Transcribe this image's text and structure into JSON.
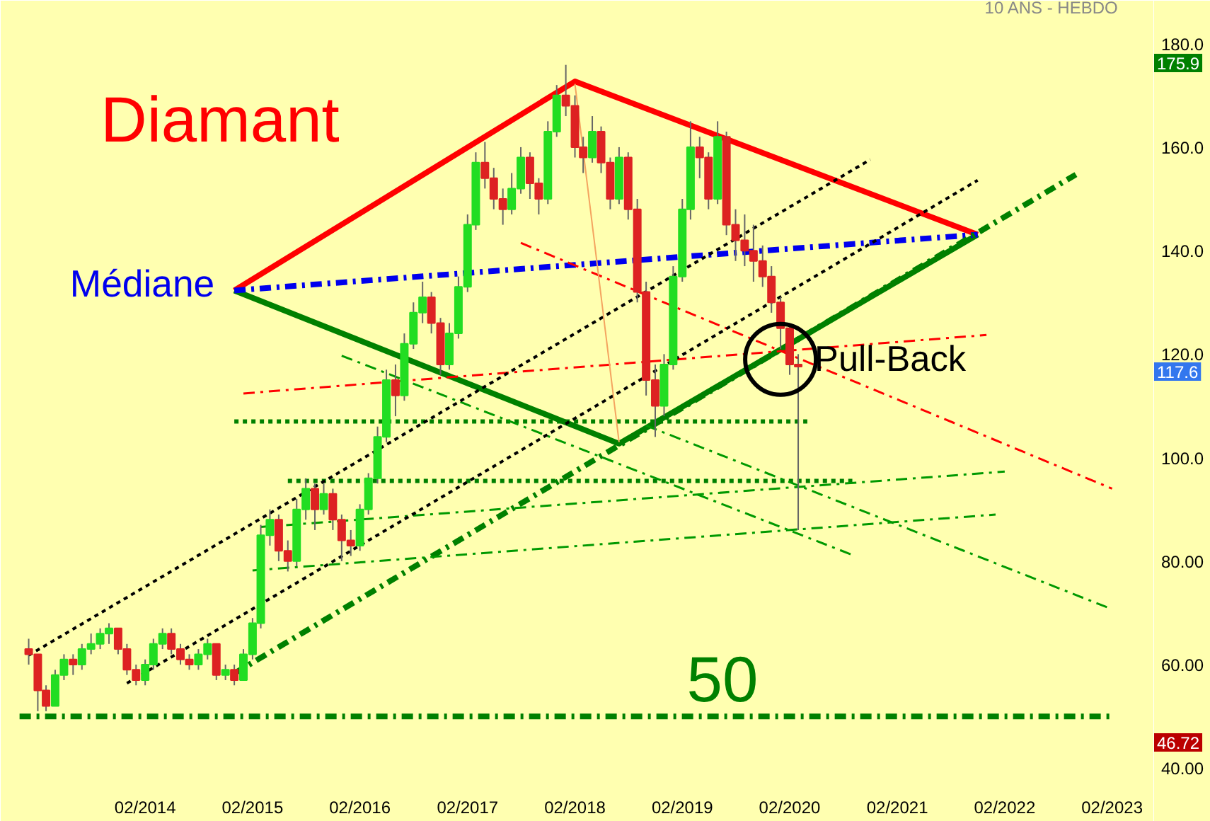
{
  "chart_data": {
    "type": "candlestick",
    "title": "10 ANS - HEBDO",
    "grid": false,
    "x": [
      "2013-01",
      "2013-02",
      "2013-03",
      "2013-04",
      "2013-05",
      "2013-06",
      "2013-07",
      "2013-08",
      "2013-09",
      "2013-10",
      "2013-11",
      "2013-12",
      "2014-01",
      "2014-02",
      "2014-03",
      "2014-04",
      "2014-05",
      "2014-06",
      "2014-07",
      "2014-08",
      "2014-09",
      "2014-10",
      "2014-11",
      "2014-12",
      "2015-01",
      "2015-02",
      "2015-03",
      "2015-04",
      "2015-05",
      "2015-06",
      "2015-07",
      "2015-08",
      "2015-09",
      "2015-10",
      "2015-11",
      "2015-12",
      "2016-01",
      "2016-02",
      "2016-03",
      "2016-04",
      "2016-05",
      "2016-06",
      "2016-07",
      "2016-08",
      "2016-09",
      "2016-10",
      "2016-11",
      "2016-12",
      "2017-01",
      "2017-02",
      "2017-03",
      "2017-04",
      "2017-05",
      "2017-06",
      "2017-07",
      "2017-08",
      "2017-09",
      "2017-10",
      "2017-11",
      "2017-12",
      "2018-01",
      "2018-02",
      "2018-03",
      "2018-04",
      "2018-05",
      "2018-06",
      "2018-07",
      "2018-08",
      "2018-09",
      "2018-10",
      "2018-11",
      "2018-12",
      "2019-01",
      "2019-02",
      "2019-03",
      "2019-04",
      "2019-05",
      "2019-06",
      "2019-07",
      "2019-08",
      "2019-09",
      "2019-10",
      "2019-11",
      "2019-12",
      "2020-01",
      "2020-02",
      "2020-03"
    ],
    "ohlc": [
      [
        63,
        65,
        60,
        62
      ],
      [
        62,
        62,
        51,
        55
      ],
      [
        55,
        56,
        51,
        52
      ],
      [
        52,
        59,
        52,
        58
      ],
      [
        58,
        62,
        57,
        61
      ],
      [
        61,
        62,
        58,
        60
      ],
      [
        60,
        64,
        59,
        63
      ],
      [
        63,
        66,
        62,
        64
      ],
      [
        64,
        67,
        63,
        66
      ],
      [
        66,
        68,
        64,
        67
      ],
      [
        67,
        67,
        62,
        63
      ],
      [
        63,
        64,
        58,
        59
      ],
      [
        59,
        60,
        56,
        57
      ],
      [
        57,
        61,
        56,
        60
      ],
      [
        60,
        65,
        59,
        64
      ],
      [
        64,
        67,
        63,
        66
      ],
      [
        66,
        67,
        62,
        63
      ],
      [
        63,
        64,
        60,
        61
      ],
      [
        61,
        62,
        59,
        60
      ],
      [
        60,
        63,
        59,
        62
      ],
      [
        62,
        65,
        61,
        64
      ],
      [
        64,
        64,
        57,
        58
      ],
      [
        58,
        60,
        57,
        59
      ],
      [
        59,
        60,
        56,
        57
      ],
      [
        57,
        63,
        57,
        62
      ],
      [
        62,
        69,
        61,
        68
      ],
      [
        68,
        87,
        67,
        85
      ],
      [
        85,
        90,
        83,
        88
      ],
      [
        88,
        89,
        80,
        82
      ],
      [
        82,
        84,
        78,
        80
      ],
      [
        80,
        92,
        79,
        90
      ],
      [
        90,
        96,
        88,
        94
      ],
      [
        94,
        95,
        86,
        90
      ],
      [
        90,
        95,
        89,
        93
      ],
      [
        93,
        94,
        86,
        88
      ],
      [
        88,
        89,
        80,
        84
      ],
      [
        84,
        86,
        81,
        83
      ],
      [
        83,
        91,
        82,
        90
      ],
      [
        90,
        97,
        89,
        96
      ],
      [
        96,
        106,
        95,
        104
      ],
      [
        104,
        117,
        103,
        115
      ],
      [
        115,
        118,
        108,
        112
      ],
      [
        112,
        124,
        111,
        122
      ],
      [
        122,
        130,
        121,
        128
      ],
      [
        128,
        134,
        126,
        131
      ],
      [
        131,
        132,
        124,
        126
      ],
      [
        126,
        127,
        116,
        118
      ],
      [
        118,
        126,
        117,
        124
      ],
      [
        124,
        135,
        123,
        133
      ],
      [
        133,
        147,
        132,
        145
      ],
      [
        145,
        159,
        144,
        157
      ],
      [
        157,
        161,
        152,
        154
      ],
      [
        154,
        156,
        148,
        150
      ],
      [
        150,
        152,
        145,
        148
      ],
      [
        148,
        155,
        147,
        152
      ],
      [
        152,
        160,
        151,
        158
      ],
      [
        158,
        159,
        150,
        153
      ],
      [
        153,
        154,
        147,
        150
      ],
      [
        150,
        165,
        149,
        163
      ],
      [
        163,
        172,
        162,
        170
      ],
      [
        170,
        175.9,
        166,
        168
      ],
      [
        168,
        170,
        158,
        160
      ],
      [
        160,
        162,
        155,
        158
      ],
      [
        158,
        166,
        157,
        163
      ],
      [
        163,
        164,
        155,
        157
      ],
      [
        157,
        158,
        148,
        150
      ],
      [
        150,
        160,
        149,
        158
      ],
      [
        158,
        159,
        146,
        148
      ],
      [
        148,
        150,
        130,
        132
      ],
      [
        132,
        134,
        112,
        115
      ],
      [
        115,
        118,
        104,
        110
      ],
      [
        110,
        120,
        108,
        118
      ],
      [
        118,
        137,
        117,
        135
      ],
      [
        135,
        150,
        134,
        148
      ],
      [
        148,
        165,
        146,
        160
      ],
      [
        160,
        162,
        154,
        158
      ],
      [
        158,
        159,
        148,
        150
      ],
      [
        150,
        165,
        149,
        162
      ],
      [
        162,
        163,
        143,
        145
      ],
      [
        145,
        148,
        138,
        142
      ],
      [
        142,
        147,
        137,
        140
      ],
      [
        140,
        145,
        134,
        138
      ],
      [
        138,
        141,
        133,
        135
      ],
      [
        135,
        137,
        128,
        130
      ],
      [
        130,
        131,
        121,
        125
      ],
      [
        125,
        126,
        116,
        118
      ],
      [
        118,
        120,
        86,
        117.6
      ]
    ],
    "series": [
      {
        "type": "line",
        "color": "#ff0000",
        "line_style": "solid",
        "x": [
          "2014-12",
          "2018-02",
          "2021-11"
        ],
        "values": [
          132.3,
          172.7,
          143.1
        ]
      },
      {
        "type": "line",
        "color": "#008000",
        "line_style": "solid",
        "x": [
          "2014-12",
          "2018-07",
          "2021-11"
        ],
        "values": [
          132.3,
          102.7,
          143.1
        ]
      },
      {
        "type": "line",
        "color": "#0000ee",
        "line_style": "dashed",
        "x": [
          "2014-12",
          "2021-11"
        ],
        "values": [
          132.3,
          143.1
        ]
      },
      {
        "type": "line",
        "color": "#008000",
        "line_style": "dashed",
        "x": [
          "2014-12",
          "2022-10"
        ],
        "values": [
          58.3,
          154.7
        ]
      },
      {
        "type": "line",
        "color": "#008000",
        "line_style": "dashed",
        "x": [
          "2012-12",
          "2023-02"
        ],
        "values": [
          50,
          50
        ]
      },
      {
        "type": "line",
        "color": "#008000",
        "line_style": "dotted",
        "x": [
          "2014-12",
          "2020-04"
        ],
        "values": [
          107,
          107
        ]
      },
      {
        "type": "line",
        "color": "#008000",
        "line_style": "dotted",
        "x": [
          "2015-06",
          "2020-09"
        ],
        "values": [
          95.5,
          95.5
        ]
      },
      {
        "type": "line",
        "color": "#ff0000",
        "line_style": "dashed",
        "x": [
          "2015-01",
          "2021-12"
        ],
        "values": [
          112.4,
          123.7
        ]
      },
      {
        "type": "line",
        "color": "#ff0000",
        "line_style": "dashed",
        "x": [
          "2017-08",
          "2023-02"
        ],
        "values": [
          141.5,
          94.0
        ]
      },
      {
        "type": "line",
        "color": "#009900",
        "line_style": "dashed",
        "x": [
          "2015-12",
          "2020-09"
        ],
        "values": [
          119.7,
          81.2
        ]
      },
      {
        "type": "line",
        "color": "#009900",
        "line_style": "dashed",
        "x": [
          "2018-10",
          "2023-02"
        ],
        "values": [
          106.2,
          70.7
        ]
      },
      {
        "type": "line",
        "color": "#009900",
        "line_style": "dashed",
        "x": [
          "2015-02",
          "2022-01"
        ],
        "values": [
          78.2,
          89.0
        ]
      },
      {
        "type": "line",
        "color": "#009900",
        "line_style": "dashed",
        "x": [
          "2015-03",
          "2022-02"
        ],
        "values": [
          86.6,
          97.3
        ]
      },
      {
        "type": "line",
        "color": "#000000",
        "line_style": "dotted",
        "x": [
          "2013-01",
          "2020-11"
        ],
        "values": [
          61.8,
          157.6
        ]
      },
      {
        "type": "line",
        "color": "#000000",
        "line_style": "dotted",
        "x": [
          "2013-12",
          "2021-11"
        ],
        "values": [
          56.4,
          153.6
        ]
      },
      {
        "type": "line",
        "color": "#f4a460",
        "line_style": "solid",
        "x": [
          "2018-02",
          "2018-07"
        ],
        "values": [
          172.2,
          103
        ]
      }
    ],
    "annotations": [
      "Diamant",
      "Médiane",
      {
        "text": "Pull-Back",
        "x": "2020-01",
        "y": 119
      },
      "50",
      "175.9",
      "117.6",
      "46.72"
    ],
    "xlim": [
      "2012-11-15",
      "2023-03-10"
    ],
    "xticks": [
      {
        "value": "2014-02",
        "label": "02/2014"
      },
      {
        "value": "2015-02",
        "label": "02/2015"
      },
      {
        "value": "2016-02",
        "label": "02/2016"
      },
      {
        "value": "2017-02",
        "label": "02/2017"
      },
      {
        "value": "2018-02",
        "label": "02/2018"
      },
      {
        "value": "2019-02",
        "label": "02/2019"
      },
      {
        "value": "2020-02",
        "label": "02/2020"
      },
      {
        "value": "2021-02",
        "label": "02/2021"
      },
      {
        "value": "2022-02",
        "label": "02/2022"
      },
      {
        "value": "2023-02",
        "label": "02/2023"
      }
    ],
    "ylim": [
      37.3,
      188.3
    ],
    "yticks": [
      {
        "value": 40,
        "label": "40.00"
      },
      {
        "value": 60,
        "label": "60.00"
      },
      {
        "value": 80,
        "label": "80.00"
      },
      {
        "value": 100,
        "label": "100.0"
      },
      {
        "value": 120,
        "label": "120.0"
      },
      {
        "value": 140,
        "label": "140.0"
      },
      {
        "value": 160,
        "label": "160.0"
      },
      {
        "value": 180,
        "label": "180.0"
      }
    ]
  }
}
